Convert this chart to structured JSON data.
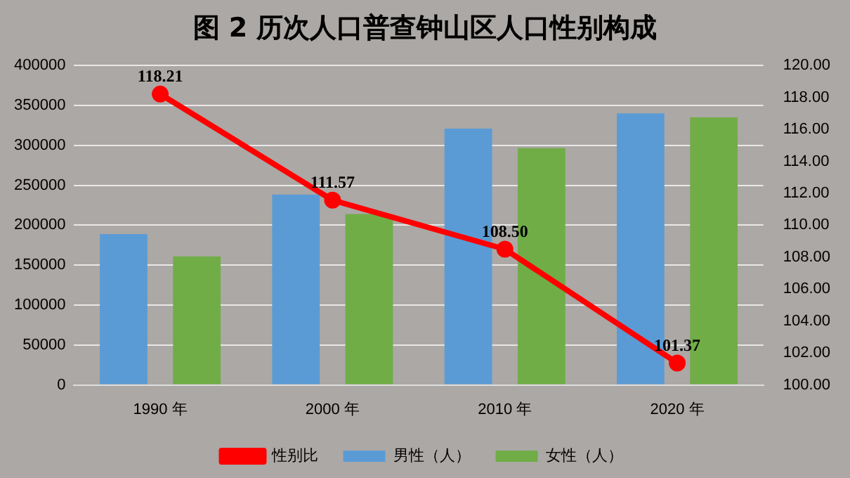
{
  "chart_data": {
    "type": "bar",
    "title": "图 2  历次人口普查钟山区人口性别构成",
    "categories": [
      "1990 年",
      "2000 年",
      "2010 年",
      "2020 年"
    ],
    "series": [
      {
        "name": "男性（人）",
        "color": "#5b9bd5",
        "values": [
          189000,
          238500,
          321000,
          340000
        ]
      },
      {
        "name": "女性（人）",
        "color": "#70ad47",
        "values": [
          161000,
          214000,
          296500,
          335000
        ]
      },
      {
        "name": "性别比",
        "type": "line",
        "axis": "y2",
        "color": "#ff0000",
        "values": [
          118.21,
          111.57,
          108.5,
          101.37
        ],
        "value_labels": [
          "118.21",
          "111.57",
          "108.50",
          "101.37"
        ],
        "marker": "circle"
      }
    ],
    "ylim": [
      0,
      400000
    ],
    "yticks": [
      0,
      50000,
      100000,
      150000,
      200000,
      250000,
      300000,
      350000,
      400000
    ],
    "y2lim": [
      100,
      120
    ],
    "y2ticks": [
      {
        "value": 100,
        "label": "100.00"
      },
      {
        "value": 102,
        "label": "102.00"
      },
      {
        "value": 104,
        "label": "104.00"
      },
      {
        "value": 106,
        "label": "106.00"
      },
      {
        "value": 108,
        "label": "108.00"
      },
      {
        "value": 110,
        "label": "110.00"
      },
      {
        "value": 112,
        "label": "112.00"
      },
      {
        "value": 114,
        "label": "114.00"
      },
      {
        "value": 116,
        "label": "116.00"
      },
      {
        "value": 118,
        "label": "118.00"
      },
      {
        "value": 120,
        "label": "120.00"
      }
    ],
    "grid": "y",
    "legend": "bottom"
  }
}
